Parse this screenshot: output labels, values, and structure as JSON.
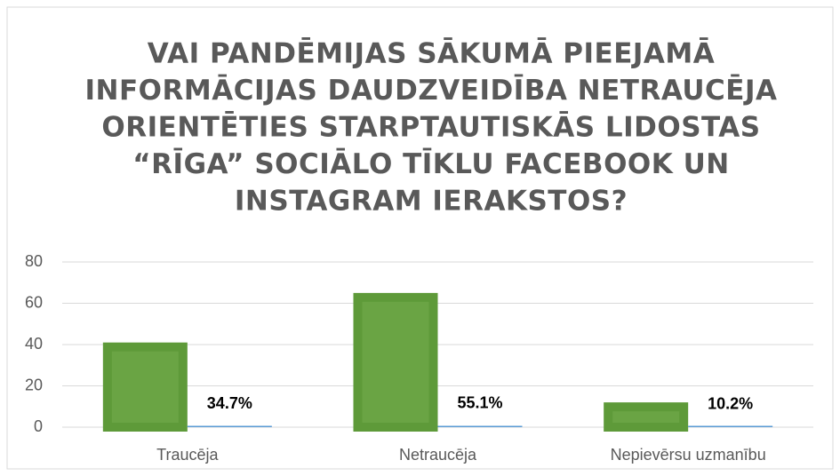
{
  "chart_data": {
    "type": "bar",
    "title": [
      "VAI PANDĒMIJAS SĀKUMĀ PIEEJAMĀ",
      "INFORMĀCIJAS DAUDZVEIDĪBA NETRAUCĒJA",
      "ORIENTĒTIES STARPTAUTISKĀS LIDOSTAS",
      "“RĪGA” SOCIĀLO TĪKLU  FACEBOOK UN",
      "INSTAGRAM IERAKSTOS?"
    ],
    "categories": [
      "Traucēja",
      "Netraucēja",
      "Nepievērsu uzmanību"
    ],
    "series": [
      {
        "color": "#6aa444",
        "values": [
          41,
          65,
          12
        ]
      },
      {
        "color": "#5b9bd5",
        "values": [
          0.347,
          0.551,
          0.102
        ],
        "value_labels": [
          "34.7%",
          "55.1%",
          "10.2%"
        ]
      }
    ],
    "ylim": [
      0,
      80
    ],
    "yticks": [
      0,
      20,
      40,
      60,
      80
    ],
    "grid": true
  }
}
